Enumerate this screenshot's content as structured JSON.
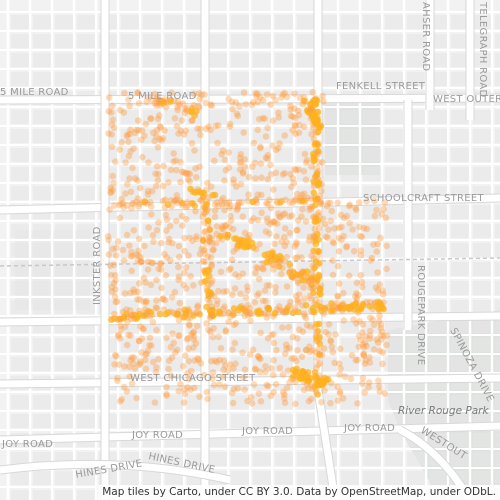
{
  "map": {
    "type": "point-density map",
    "basemap_style": "light gray street map",
    "road_labels": {
      "five_mile": "5 MILE ROAD",
      "fenkell": "FENKELL STREET",
      "west_outer": "WEST OUTER",
      "schoolcraft": "SCHOOLCRAFT STREET",
      "inkster": "INKSTER ROAD",
      "west_chicago": "WEST CHICAGO STREET",
      "joy_road_left": "JOY ROAD",
      "joy_road_mid": "JOY ROAD",
      "joy_road_right": "JOY ROAD",
      "hines_drive_left": "HINES DRIVE",
      "hines_drive_right": "HINES DRIVE",
      "rougepark": "ROUGEPARK DRIVE",
      "spinoza": "SPINOZA DRIVE",
      "westout": "WESTOUT",
      "telegraph_top": "TELEGRAPH ROAD",
      "ahser": "AHSER ROAD"
    },
    "park_label": "River Rouge Park",
    "attribution": "Map tiles by Carto, under CC BY 3.0. Data by OpenStreetMap, under ODbL.",
    "colors": {
      "background": "#f2f2f2",
      "minor_road": "#ffffff",
      "major_road": "#ffffff",
      "block": "#e6e6e6",
      "park": "#dfe3df",
      "point": "#ff9a3c",
      "hotspot": "#ffb21f"
    }
  }
}
